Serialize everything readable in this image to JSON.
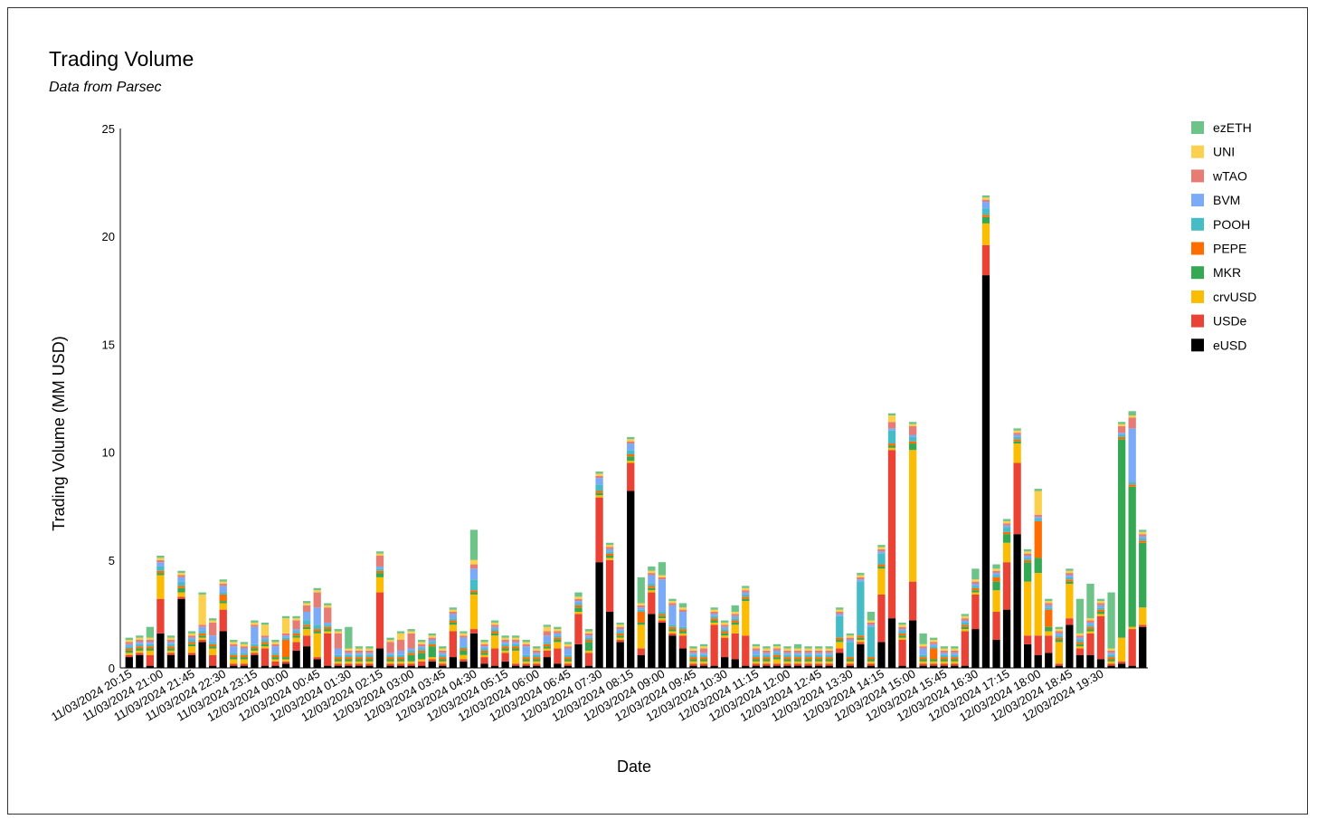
{
  "chart_data": {
    "type": "bar",
    "stacked": true,
    "title": "Trading Volume",
    "subtitle": "Data from Parsec",
    "xlabel": "Date",
    "ylabel": "Trading Volume (MM USD)",
    "ylim": [
      0,
      25
    ],
    "yticks": [
      0,
      5,
      10,
      15,
      20,
      25
    ],
    "legend_position": "right",
    "x_tick_labels": [
      "11/03/2024 20:15",
      "11/03/2024 21:00",
      "11/03/2024 21:45",
      "11/03/2024 22:30",
      "11/03/2024 23:15",
      "12/03/2024 00:00",
      "12/03/2024 00:45",
      "12/03/2024 01:30",
      "12/03/2024 02:15",
      "12/03/2024 03:00",
      "12/03/2024 03:45",
      "12/03/2024 04:30",
      "12/03/2024 05:15",
      "12/03/2024 06:00",
      "12/03/2024 06:45",
      "12/03/2024 07:30",
      "12/03/2024 08:15",
      "12/03/2024 09:00",
      "12/03/2024 09:45",
      "12/03/2024 10:30",
      "12/03/2024 11:15",
      "12/03/2024 12:00",
      "12/03/2024 12:45",
      "12/03/2024 13:30",
      "12/03/2024 14:15",
      "12/03/2024 15:00",
      "12/03/2024 15:45",
      "12/03/2024 16:30",
      "12/03/2024 17:15",
      "12/03/2024 18:00",
      "12/03/2024 18:45",
      "12/03/2024 19:30"
    ],
    "series": [
      {
        "name": "eUSD",
        "color": "#000000",
        "values": [
          0.5,
          0.6,
          0.1,
          1.6,
          0.6,
          3.2,
          0.6,
          1.2,
          0.1,
          1.7,
          0.1,
          0.1,
          0.6,
          0.1,
          0.1,
          0.2,
          0.8,
          1.0,
          0.4,
          0.1,
          0.1,
          0.1,
          0.1,
          0.1,
          0.9,
          0.1,
          0.1,
          0.1,
          0.1,
          0.3,
          0.1,
          0.5,
          0.3,
          1.6,
          0.2,
          0.1,
          0.3,
          0.1,
          0.1,
          0.1,
          0.5,
          0.2,
          0.1,
          1.1,
          0.1,
          4.9,
          2.6,
          1.2,
          8.2,
          0.6,
          2.5,
          2.1,
          1.5,
          0.9,
          0.1,
          0.1,
          0.1,
          0.5,
          0.4,
          0.1,
          0.1,
          0.1,
          0.1,
          0.1,
          0.1,
          0.1,
          0.1,
          0.1,
          0.7,
          0.1,
          1.1,
          0.1,
          1.2,
          2.3,
          0.1,
          2.2,
          0.1,
          0.1,
          0.1,
          0.1,
          0.1,
          1.8,
          18.2,
          1.3,
          2.7,
          6.2,
          1.1,
          0.6,
          0.7,
          0.1,
          2.0,
          0.6,
          0.6,
          0.4,
          0.1,
          0.2,
          0.1,
          1.9
        ]
      },
      {
        "name": "USDe",
        "color": "#ea4335",
        "values": [
          0.1,
          0.1,
          0.5,
          1.6,
          0.1,
          0.1,
          0.1,
          0.1,
          0.5,
          1.0,
          0.1,
          0.1,
          0.1,
          0.8,
          0.2,
          0.1,
          0.4,
          0.5,
          0.1,
          1.5,
          0.1,
          0.1,
          0.1,
          0.1,
          2.6,
          0.1,
          0.1,
          0.1,
          0.2,
          0.1,
          0.1,
          1.2,
          0.1,
          0.2,
          0.3,
          0.8,
          0.4,
          0.1,
          0.1,
          0.1,
          0.3,
          0.7,
          0.1,
          1.4,
          0.6,
          3.0,
          2.4,
          0.1,
          1.3,
          0.3,
          1.0,
          0.1,
          0.1,
          0.6,
          0.1,
          0.1,
          1.9,
          0.9,
          1.2,
          1.4,
          0.1,
          0.1,
          0.1,
          0.1,
          0.1,
          0.1,
          0.1,
          0.1,
          0.2,
          0.1,
          0.1,
          0.1,
          2.2,
          7.8,
          1.2,
          1.8,
          0.1,
          0.1,
          0.1,
          0.1,
          1.6,
          1.6,
          1.4,
          1.3,
          2.2,
          3.3,
          0.4,
          0.9,
          0.8,
          0.1,
          0.3,
          0.3,
          1.0,
          2.0,
          0.1,
          0.1,
          1.7,
          0.1
        ]
      },
      {
        "name": "crvUSD",
        "color": "#fbbc04",
        "values": [
          0.1,
          0.1,
          0.2,
          1.1,
          0.1,
          0.2,
          0.3,
          0.1,
          0.3,
          0.3,
          0.2,
          0.2,
          0.1,
          0.1,
          0.1,
          0.1,
          0.2,
          0.3,
          1.1,
          0.1,
          0.1,
          0.1,
          0.1,
          0.1,
          0.7,
          0.1,
          0.1,
          0.1,
          0.1,
          0.1,
          0.1,
          0.3,
          0.2,
          1.6,
          0.1,
          0.6,
          0.1,
          0.6,
          0.1,
          0.1,
          0.1,
          0.3,
          0.1,
          0.1,
          0.1,
          0.1,
          0.1,
          0.1,
          0.1,
          1.1,
          0.1,
          0.1,
          0.1,
          0.1,
          0.1,
          0.1,
          0.1,
          0.1,
          0.4,
          1.6,
          0.1,
          0.1,
          0.2,
          0.1,
          0.1,
          0.1,
          0.1,
          0.1,
          0.3,
          0.1,
          0.1,
          0.1,
          1.2,
          0.1,
          0.1,
          6.1,
          0.1,
          0.1,
          0.1,
          0.1,
          0.1,
          0.1,
          1.0,
          1.0,
          0.9,
          0.9,
          2.5,
          2.9,
          0.2,
          1.0,
          1.6,
          0.1,
          0.1,
          0.1,
          0.1,
          1.1,
          0.1,
          0.8
        ]
      },
      {
        "name": "MKR",
        "color": "#34a853",
        "values": [
          0.1,
          0.1,
          0.1,
          0.1,
          0.1,
          0.2,
          0.1,
          0.1,
          0.1,
          0.1,
          0.1,
          0.1,
          0.1,
          0.1,
          0.1,
          0.1,
          0.1,
          0.1,
          0.1,
          0.1,
          0.1,
          0.1,
          0.1,
          0.1,
          0.2,
          0.1,
          0.1,
          0.3,
          0.3,
          0.5,
          0.1,
          0.1,
          0.2,
          0.1,
          0.1,
          0.1,
          0.1,
          0.1,
          0.1,
          0.1,
          0.1,
          0.1,
          0.1,
          0.2,
          0.4,
          0.1,
          0.1,
          0.1,
          0.2,
          0.1,
          0.1,
          0.1,
          0.1,
          0.1,
          0.1,
          0.1,
          0.1,
          0.1,
          0.1,
          0.1,
          0.1,
          0.1,
          0.1,
          0.1,
          0.1,
          0.1,
          0.1,
          0.1,
          0.1,
          0.1,
          0.1,
          0.1,
          0.1,
          0.1,
          0.1,
          0.3,
          0.1,
          0.1,
          0.1,
          0.1,
          0.1,
          0.1,
          0.3,
          0.4,
          0.4,
          0.1,
          0.9,
          0.7,
          0.2,
          0.1,
          0.1,
          0.1,
          0.1,
          0.1,
          0.1,
          9.2,
          6.5,
          3.0
        ]
      },
      {
        "name": "PEPE",
        "color": "#ff6d01",
        "values": [
          0.1,
          0.1,
          0.1,
          0.1,
          0.1,
          0.1,
          0.1,
          0.1,
          0.1,
          0.3,
          0.1,
          0.1,
          0.1,
          0.1,
          0.1,
          0.8,
          0.1,
          0.1,
          0.1,
          0.1,
          0.1,
          0.1,
          0.1,
          0.1,
          0.1,
          0.1,
          0.1,
          0.1,
          0.1,
          0.1,
          0.1,
          0.1,
          0.1,
          0.1,
          0.1,
          0.1,
          0.1,
          0.1,
          0.1,
          0.1,
          0.1,
          0.1,
          0.1,
          0.1,
          0.1,
          0.1,
          0.1,
          0.1,
          0.1,
          0.5,
          0.1,
          0.1,
          0.1,
          0.1,
          0.1,
          0.1,
          0.1,
          0.1,
          0.1,
          0.1,
          0.1,
          0.1,
          0.1,
          0.1,
          0.1,
          0.1,
          0.1,
          0.1,
          0.1,
          0.1,
          0.1,
          0.1,
          0.1,
          0.1,
          0.1,
          0.1,
          0.1,
          0.5,
          0.1,
          0.1,
          0.1,
          0.1,
          0.1,
          0.2,
          0.1,
          0.1,
          0.1,
          1.7,
          0.8,
          0.1,
          0.1,
          0.1,
          0.1,
          0.1,
          0.1,
          0.1,
          0.1,
          0.1
        ]
      },
      {
        "name": "POOH",
        "color": "#46bdc6",
        "values": [
          0.1,
          0.1,
          0.1,
          0.2,
          0.1,
          0.2,
          0.1,
          0.1,
          0.1,
          0.1,
          0.1,
          0.1,
          0.1,
          0.1,
          0.1,
          0.1,
          0.1,
          0.2,
          0.2,
          0.1,
          0.1,
          0.1,
          0.1,
          0.1,
          0.1,
          0.1,
          0.1,
          0.1,
          0.1,
          0.1,
          0.1,
          0.1,
          0.1,
          0.5,
          0.1,
          0.1,
          0.1,
          0.1,
          0.1,
          0.1,
          0.1,
          0.1,
          0.1,
          0.1,
          0.1,
          0.3,
          0.1,
          0.1,
          0.2,
          0.1,
          0.1,
          0.1,
          0.1,
          0.1,
          0.1,
          0.1,
          0.1,
          0.1,
          0.1,
          0.1,
          0.1,
          0.1,
          0.1,
          0.1,
          0.1,
          0.1,
          0.1,
          0.1,
          1.0,
          0.7,
          2.5,
          1.4,
          0.5,
          0.6,
          0.1,
          0.2,
          0.1,
          0.1,
          0.1,
          0.1,
          0.1,
          0.1,
          0.3,
          0.1,
          0.2,
          0.1,
          0.1,
          0.1,
          0.1,
          0.1,
          0.1,
          0.1,
          0.1,
          0.1,
          0.1,
          0.1,
          0.1,
          0.1
        ]
      },
      {
        "name": "BVM",
        "color": "#7baaf7",
        "values": [
          0.1,
          0.1,
          0.1,
          0.2,
          0.1,
          0.2,
          0.1,
          0.2,
          0.3,
          0.3,
          0.3,
          0.2,
          0.8,
          0.1,
          0.3,
          0.1,
          0.1,
          0.4,
          0.8,
          0.1,
          0.3,
          0.1,
          0.1,
          0.1,
          0.1,
          0.1,
          0.2,
          0.1,
          0.1,
          0.1,
          0.1,
          0.2,
          0.4,
          0.5,
          0.1,
          0.1,
          0.1,
          0.1,
          0.4,
          0.1,
          0.3,
          0.1,
          0.3,
          0.1,
          0.1,
          0.3,
          0.1,
          0.1,
          0.3,
          0.1,
          0.4,
          1.5,
          0.9,
          0.7,
          0.1,
          0.1,
          0.1,
          0.1,
          0.1,
          0.1,
          0.2,
          0.1,
          0.1,
          0.1,
          0.1,
          0.1,
          0.1,
          0.1,
          0.1,
          0.1,
          0.1,
          0.1,
          0.1,
          0.1,
          0.1,
          0.1,
          0.3,
          0.1,
          0.1,
          0.1,
          0.1,
          0.1,
          0.3,
          0.1,
          0.1,
          0.1,
          0.1,
          0.1,
          0.1,
          0.1,
          0.1,
          0.1,
          0.1,
          0.1,
          0.1,
          0.1,
          2.5,
          0.1
        ]
      },
      {
        "name": "wTAO",
        "color": "#e67c73",
        "values": [
          0.1,
          0.1,
          0.1,
          0.1,
          0.1,
          0.1,
          0.1,
          0.1,
          0.6,
          0.1,
          0.1,
          0.1,
          0.1,
          0.1,
          0.1,
          0.1,
          0.4,
          0.3,
          0.7,
          0.7,
          0.7,
          0.1,
          0.1,
          0.1,
          0.5,
          0.5,
          0.5,
          0.7,
          0.1,
          0.1,
          0.1,
          0.1,
          0.1,
          0.2,
          0.1,
          0.1,
          0.1,
          0.1,
          0.1,
          0.1,
          0.2,
          0.1,
          0.1,
          0.1,
          0.1,
          0.1,
          0.1,
          0.1,
          0.1,
          0.1,
          0.1,
          0.1,
          0.1,
          0.1,
          0.1,
          0.2,
          0.1,
          0.1,
          0.1,
          0.1,
          0.1,
          0.1,
          0.1,
          0.1,
          0.1,
          0.1,
          0.1,
          0.1,
          0.1,
          0.1,
          0.1,
          0.1,
          0.1,
          0.3,
          0.1,
          0.4,
          0.1,
          0.1,
          0.1,
          0.1,
          0.1,
          0.1,
          0.1,
          0.1,
          0.1,
          0.1,
          0.1,
          0.1,
          0.1,
          0.1,
          0.1,
          0.1,
          0.1,
          0.1,
          0.1,
          0.3,
          0.5,
          0.1
        ]
      },
      {
        "name": "UNI",
        "color": "#fcd04f",
        "values": [
          0.1,
          0.1,
          0.1,
          0.1,
          0.1,
          0.1,
          0.1,
          1.4,
          0.1,
          0.1,
          0.1,
          0.1,
          0.1,
          0.5,
          0.1,
          0.7,
          0.1,
          0.1,
          0.1,
          0.1,
          0.1,
          0.1,
          0.1,
          0.1,
          0.1,
          0.1,
          0.3,
          0.1,
          0.1,
          0.1,
          0.1,
          0.1,
          0.1,
          0.2,
          0.1,
          0.1,
          0.1,
          0.1,
          0.1,
          0.1,
          0.2,
          0.1,
          0.1,
          0.1,
          0.1,
          0.1,
          0.1,
          0.1,
          0.1,
          0.1,
          0.1,
          0.1,
          0.1,
          0.1,
          0.1,
          0.1,
          0.1,
          0.1,
          0.1,
          0.1,
          0.1,
          0.1,
          0.1,
          0.1,
          0.1,
          0.1,
          0.1,
          0.1,
          0.1,
          0.1,
          0.1,
          0.1,
          0.1,
          0.3,
          0.1,
          0.1,
          0.1,
          0.1,
          0.1,
          0.1,
          0.1,
          0.1,
          0.1,
          0.1,
          0.1,
          0.1,
          0.1,
          1.1,
          0.1,
          0.1,
          0.1,
          0.1,
          0.1,
          0.1,
          0.1,
          0.1,
          0.1,
          0.1
        ]
      },
      {
        "name": "ezETH",
        "color": "#6dc388",
        "values": [
          0.1,
          0.1,
          0.5,
          0.1,
          0.1,
          0.1,
          0.1,
          0.1,
          0.1,
          0.1,
          0.1,
          0.1,
          0.1,
          0.1,
          0.1,
          0.1,
          0.1,
          0.1,
          0.1,
          0.1,
          0.1,
          1.0,
          0.1,
          0.1,
          0.1,
          0.1,
          0.1,
          0.1,
          0.1,
          0.1,
          0.1,
          0.1,
          0.1,
          1.4,
          0.1,
          0.1,
          0.1,
          0.1,
          0.1,
          0.1,
          0.1,
          0.1,
          0.1,
          0.2,
          0.1,
          0.1,
          0.1,
          0.1,
          0.1,
          1.2,
          0.2,
          0.6,
          0.1,
          0.2,
          0.1,
          0.1,
          0.1,
          0.1,
          0.3,
          0.1,
          0.1,
          0.1,
          0.1,
          0.1,
          0.2,
          0.1,
          0.1,
          0.1,
          0.1,
          0.1,
          0.1,
          0.4,
          0.1,
          0.1,
          0.1,
          0.1,
          0.5,
          0.1,
          0.1,
          0.1,
          0.1,
          0.5,
          0.1,
          0.2,
          0.1,
          0.1,
          0.1,
          0.1,
          0.1,
          0.1,
          0.1,
          1.6,
          1.6,
          0.1,
          2.6,
          0.1,
          0.2,
          0.1
        ]
      }
    ]
  }
}
